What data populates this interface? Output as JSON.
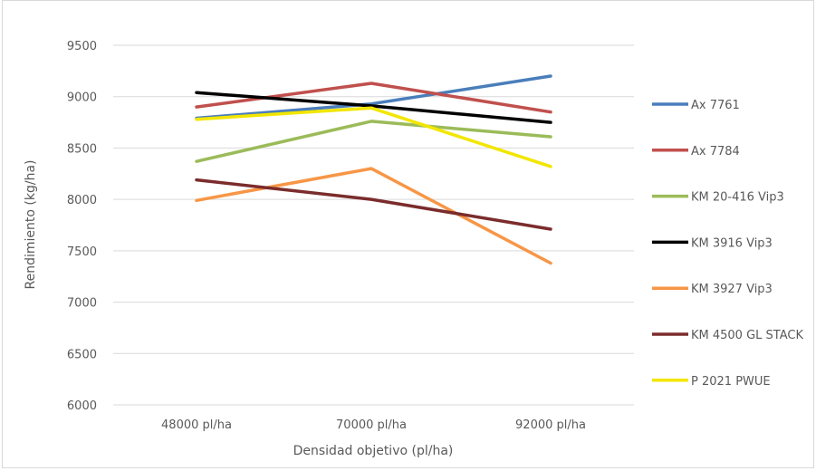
{
  "chart_data": {
    "type": "line",
    "title": "",
    "xlabel": "Densidad objetivo (pl/ha)",
    "ylabel": "Rendimiento (kg/ha)",
    "categories": [
      "48000 pl/ha",
      "70000 pl/ha",
      "92000 pl/ha"
    ],
    "ylim": [
      6000,
      9500
    ],
    "yticks": [
      6000,
      6500,
      7000,
      7500,
      8000,
      8500,
      9000,
      9500
    ],
    "grid": true,
    "legend_position": "right",
    "series": [
      {
        "name": "Ax 7761",
        "color": "#4a7ebb",
        "values": [
          8790,
          8930,
          9200
        ]
      },
      {
        "name": "Ax 7784",
        "color": "#c0504d",
        "values": [
          8900,
          9130,
          8850
        ]
      },
      {
        "name": "KM 20-416 Vip3",
        "color": "#9bbb59",
        "values": [
          8370,
          8760,
          8610
        ]
      },
      {
        "name": "KM 3916 Vip3",
        "color": "#000000",
        "values": [
          9040,
          8910,
          8750
        ]
      },
      {
        "name": "KM 3927 Vip3",
        "color": "#f79646",
        "values": [
          7990,
          8300,
          7380
        ]
      },
      {
        "name": "KM 4500 GL STACK",
        "color": "#7b2c2c",
        "values": [
          8190,
          8000,
          7710
        ]
      },
      {
        "name": "P 2021 PWUE",
        "color": "#f2e600",
        "values": [
          8780,
          8890,
          8320
        ]
      }
    ]
  }
}
